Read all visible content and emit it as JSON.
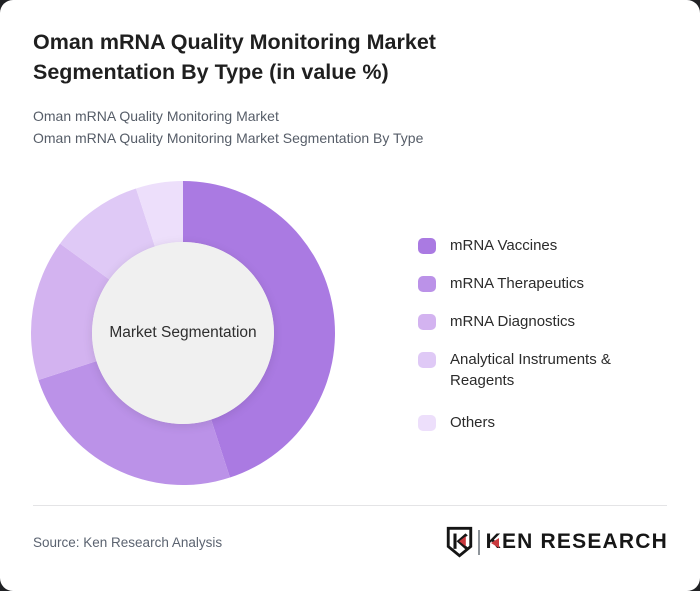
{
  "page": {
    "background": "#202124",
    "card_background": "#ffffff"
  },
  "header": {
    "title": "Oman mRNA Quality Monitoring Market Segmentation By Type (in value %)",
    "subtitle_line1": "Oman mRNA Quality Monitoring Market",
    "subtitle_line2": "Oman mRNA Quality Monitoring Market Segmentation By Type"
  },
  "chart_data": {
    "type": "pie",
    "variant": "donut",
    "title": "Oman mRNA Quality Monitoring Market Segmentation By Type (in value %)",
    "categories": [
      "mRNA Vaccines",
      "mRNA Therapeutics",
      "mRNA Diagnostics",
      "Analytical Instruments & Reagents",
      "Others"
    ],
    "values": [
      45,
      25,
      15,
      10,
      5
    ],
    "unit": "%",
    "colors": [
      "#aa7ae2",
      "#bb92e8",
      "#d3b3f0",
      "#dfc9f6",
      "#eddffb"
    ],
    "center_label": "Market Segmentation",
    "center_fill": "#f0f0f0",
    "legend_position": "right",
    "start_angle_deg": 0,
    "direction": "clockwise",
    "data_labels": false
  },
  "footer": {
    "source": "Source: Ken Research Analysis",
    "logo_text": "KEN RESEARCH",
    "logo_accent_color": "#c9393e"
  }
}
